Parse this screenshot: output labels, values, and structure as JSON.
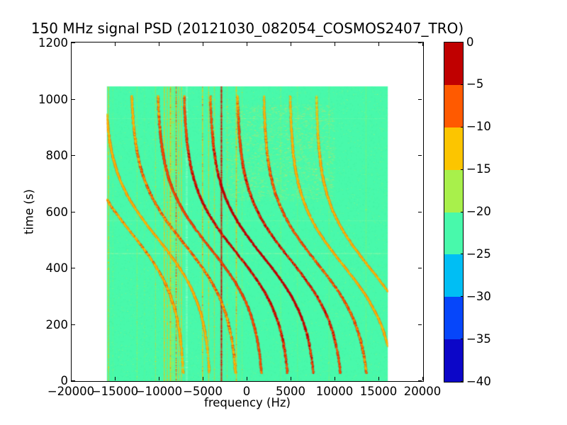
{
  "chart_data": {
    "type": "heatmap",
    "title": "150 MHz signal PSD (20121030_082054_COSMOS2407_TRO)",
    "xlabel": "frequency (Hz)",
    "ylabel": "time (s)",
    "xlim": [
      -20000,
      20000
    ],
    "ylim": [
      0,
      1200
    ],
    "x_ticks": [
      -20000,
      -15000,
      -10000,
      -5000,
      0,
      5000,
      10000,
      15000,
      20000
    ],
    "x_tick_labels": [
      "−20000",
      "−15000",
      "−10000",
      "−5000",
      "0",
      "5000",
      "10000",
      "15000",
      "20000"
    ],
    "y_ticks": [
      0,
      200,
      400,
      600,
      800,
      1000,
      1200
    ],
    "y_tick_labels": [
      "0",
      "200",
      "400",
      "600",
      "800",
      "1000",
      "1200"
    ],
    "grid": false,
    "legend": "none (colorbar right)",
    "colorbar": {
      "range_db": [
        0,
        -40
      ],
      "tick_values": [
        0,
        -5,
        -10,
        -15,
        -20,
        -25,
        -30,
        -35,
        -40
      ],
      "tick_labels": [
        "0",
        "−5",
        "−10",
        "−15",
        "−20",
        "−25",
        "−30",
        "−35",
        "−40"
      ],
      "band_colors": [
        "#c00000",
        "#ff5a00",
        "#fcc500",
        "#a8f04b",
        "#48f9ab",
        "#00bef4",
        "#0646fa",
        "#0c06c8"
      ]
    },
    "data_extent": {
      "freq_hz": [
        -16000,
        16000
      ],
      "time_s": [
        0,
        1045
      ]
    },
    "background_level_db": -22,
    "background_color": "#48f9ab",
    "vertical_lines": [
      {
        "f": -15800,
        "db": -13,
        "w": 1.5,
        "a": 0.75
      },
      {
        "f": -15300,
        "db": -18,
        "w": 1.0,
        "a": 0.25
      },
      {
        "f": -12550,
        "db": -16,
        "w": 1.2,
        "a": 0.45
      },
      {
        "f": -11700,
        "db": -18,
        "w": 1.0,
        "a": 0.2
      },
      {
        "f": -10450,
        "db": -15,
        "w": 1.2,
        "a": 0.5
      },
      {
        "f": -8600,
        "db": -16,
        "w": 7.0,
        "a": 0.5
      },
      {
        "f": -9450,
        "db": -12,
        "w": 1.6,
        "a": 0.85
      },
      {
        "f": -9100,
        "db": -13,
        "w": 1.4,
        "a": 0.75
      },
      {
        "f": -8750,
        "db": -11,
        "w": 1.5,
        "a": 0.9
      },
      {
        "f": -8100,
        "db": -10,
        "w": 1.8,
        "a": 0.95
      },
      {
        "f": -7800,
        "db": -12,
        "w": 1.4,
        "a": 0.85
      },
      {
        "f": -7500,
        "db": -13,
        "w": 1.4,
        "a": 0.8
      },
      {
        "f": -6900,
        "color": "#d9ffda",
        "w": 3.0,
        "a": 0.3
      },
      {
        "f": -5100,
        "db": -11,
        "w": 1.6,
        "a": 0.85
      },
      {
        "f": -4400,
        "db": -13,
        "w": 1.4,
        "a": 0.7
      },
      {
        "f": -3750,
        "db": -12,
        "w": 1.3,
        "a": 0.55
      },
      {
        "f": -2950,
        "db": -8,
        "w": 3.4,
        "a": 0.4
      },
      {
        "f": -2950,
        "db": -3,
        "w": 1.7,
        "a": 0.95
      },
      {
        "f": -2300,
        "db": -15,
        "w": 1.2,
        "a": 0.4
      },
      {
        "f": -1250,
        "db": -11,
        "w": 1.6,
        "a": 0.9
      },
      {
        "f": -600,
        "db": -16,
        "w": 1.2,
        "a": 0.35
      },
      {
        "f": 3800,
        "db": -18,
        "w": 1.4,
        "a": 0.3
      },
      {
        "f": 5700,
        "db": -18,
        "w": 1.4,
        "a": 0.28
      },
      {
        "f": 9300,
        "db": -18,
        "w": 1.4,
        "a": 0.28
      },
      {
        "f": 13500,
        "db": -17,
        "w": 1.6,
        "a": 0.35
      }
    ],
    "horizontal_lines": [
      {
        "t": 452,
        "color": "#e6f7a0",
        "a": 0.55
      },
      {
        "t": 568,
        "color": "#e6f7a0",
        "a": 0.28
      },
      {
        "t": 930,
        "color": "#e6f7a0",
        "a": 0.2
      }
    ],
    "doppler_curves": [
      {
        "fc": -13200,
        "amp": 6100,
        "t0": 525,
        "tau": 240,
        "peak_db": -11
      },
      {
        "fc": -10200,
        "amp": 6100,
        "t0": 505,
        "tau": 240,
        "peak_db": -13
      },
      {
        "fc": -7200,
        "amp": 6100,
        "t0": 487,
        "tau": 240,
        "peak_db": -10
      },
      {
        "fc": -4200,
        "amp": 6100,
        "t0": 470,
        "tau": 240,
        "peak_db": -7
      },
      {
        "fc": -1200,
        "amp": 6100,
        "t0": 453,
        "tau": 240,
        "peak_db": -4
      },
      {
        "fc": 1800,
        "amp": 6100,
        "t0": 441,
        "tau": 240,
        "peak_db": -3.5
      },
      {
        "fc": 4900,
        "amp": 6100,
        "t0": 430,
        "tau": 240,
        "peak_db": -5
      },
      {
        "fc": 7900,
        "amp": 6100,
        "t0": 420,
        "tau": 240,
        "peak_db": -9
      },
      {
        "fc": 10900,
        "amp": 6100,
        "t0": 411,
        "tau": 240,
        "peak_db": -12
      },
      {
        "fc": 13900,
        "amp": 6100,
        "t0": 403,
        "tau": 240,
        "peak_db": -13.5
      }
    ],
    "noise": {
      "base_speckle_count": 22000,
      "cloud": {
        "t": [
          640,
          980
        ],
        "f": [
          -2500,
          9800
        ],
        "count": 2600
      }
    }
  }
}
